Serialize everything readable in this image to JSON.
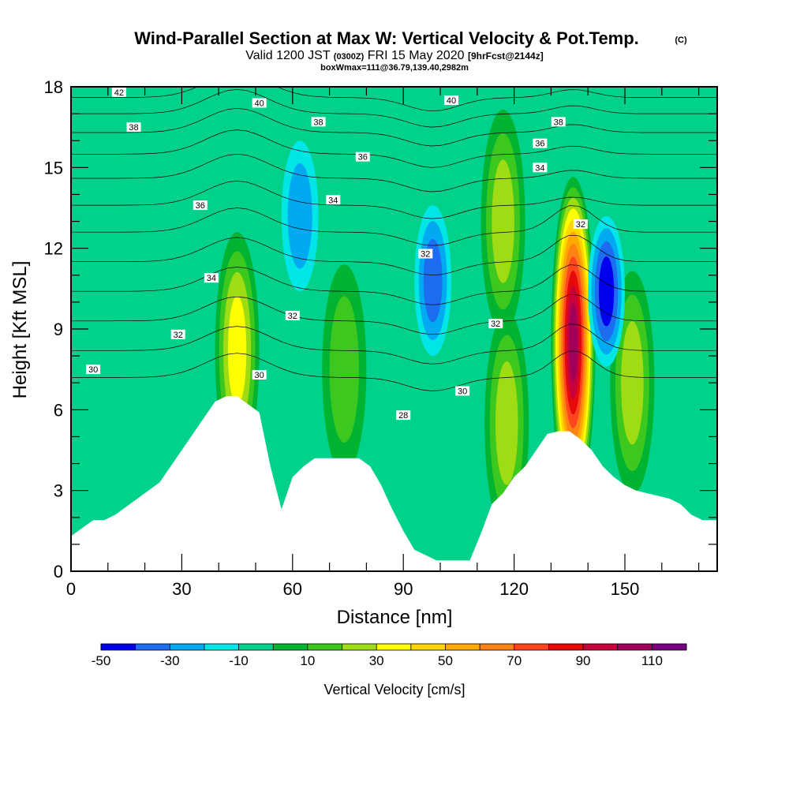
{
  "chart_data": {
    "type": "heatmap",
    "title": {
      "main": "Wind-Parallel Section at Max W: Vertical Velocity & Pot.Temp.",
      "copyright": "(C)",
      "line2_a": "Valid 1200 JST",
      "line2_b": "(0300Z)",
      "line2_c": "FRI 15 May 2020",
      "line2_d": "[9hrFcst@2144z]",
      "line3": "boxWmax=111@36.79,139.40,2982m"
    },
    "xlabel": "Distance [nm]",
    "ylabel": "Height [Kft MSL]",
    "xlim": [
      0,
      175
    ],
    "ylim": [
      0,
      18
    ],
    "xticks": [
      "0",
      "30",
      "60",
      "90",
      "120",
      "150"
    ],
    "yticks": [
      "0",
      "3",
      "6",
      "9",
      "12",
      "15",
      "18"
    ],
    "colorbar": {
      "label": "Vertical Velocity [cm/s]",
      "levels": [
        -50,
        -40,
        -30,
        -20,
        -10,
        0,
        10,
        20,
        30,
        40,
        50,
        60,
        70,
        80,
        90,
        100,
        110,
        120
      ],
      "colors": [
        "#0000ee",
        "#1e6cf0",
        "#00aaf0",
        "#00e6e6",
        "#00d28c",
        "#00b432",
        "#3cc81e",
        "#a0dc14",
        "#ffff00",
        "#ffd700",
        "#ffaa00",
        "#ff8214",
        "#ff461e",
        "#e60a0a",
        "#c8003c",
        "#a0005a",
        "#780082"
      ],
      "tick_labels": [
        "-50",
        "-30",
        "-10",
        "10",
        "30",
        "50",
        "70",
        "90",
        "110"
      ]
    },
    "terrain_profile": {
      "x": [
        0,
        3,
        6,
        9,
        12,
        15,
        18,
        21,
        24,
        27,
        30,
        33,
        36,
        39,
        42,
        45,
        48,
        51,
        54,
        57,
        60,
        63,
        66,
        69,
        72,
        75,
        78,
        81,
        84,
        87,
        90,
        93,
        96,
        99,
        102,
        105,
        108,
        111,
        114,
        117,
        120,
        123,
        126,
        129,
        132,
        135,
        138,
        141,
        144,
        147,
        150,
        153,
        156,
        159,
        162,
        165,
        168,
        171,
        175
      ],
      "y": [
        1.3,
        1.6,
        1.9,
        1.9,
        2.1,
        2.4,
        2.7,
        3.0,
        3.3,
        3.9,
        4.5,
        5.1,
        5.7,
        6.3,
        6.5,
        6.5,
        6.2,
        5.9,
        3.9,
        2.3,
        3.5,
        3.9,
        4.2,
        4.2,
        4.2,
        4.2,
        4.2,
        3.9,
        3.2,
        2.3,
        1.5,
        0.8,
        0.6,
        0.4,
        0.4,
        0.4,
        0.4,
        1.4,
        2.5,
        2.9,
        3.5,
        3.9,
        4.5,
        5.1,
        5.2,
        5.2,
        4.9,
        4.5,
        3.9,
        3.5,
        3.2,
        3.0,
        2.9,
        2.8,
        2.7,
        2.5,
        2.1,
        1.9,
        1.9
      ]
    },
    "updraft_cores": [
      {
        "x": 136,
        "y": 8.5,
        "w_peak": 111
      },
      {
        "x": 45,
        "y": 8.2,
        "w_peak": 40
      },
      {
        "x": 152,
        "y": 7.0,
        "w_peak": 35
      },
      {
        "x": 117,
        "y": 13.0,
        "w_peak": 30
      },
      {
        "x": 74,
        "y": 7.5,
        "w_peak": 28
      },
      {
        "x": 118,
        "y": 5.5,
        "w_peak": 30
      }
    ],
    "downdraft_cores": [
      {
        "x": 98,
        "y": 10.8,
        "w_min": -45
      },
      {
        "x": 145,
        "y": 10.4,
        "w_min": -50
      },
      {
        "x": 62,
        "y": 13.2,
        "w_min": -30
      },
      {
        "x": 102,
        "y": 2.5,
        "w_min": -15
      }
    ],
    "theta_contours": {
      "units": "C",
      "labels": [
        {
          "x": 13,
          "y": 17.8,
          "text": "42"
        },
        {
          "x": 51,
          "y": 17.4,
          "text": "40"
        },
        {
          "x": 103,
          "y": 17.5,
          "text": "40"
        },
        {
          "x": 17,
          "y": 16.5,
          "text": "38"
        },
        {
          "x": 67,
          "y": 16.7,
          "text": "38"
        },
        {
          "x": 132,
          "y": 16.7,
          "text": "38"
        },
        {
          "x": 79,
          "y": 15.4,
          "text": "36"
        },
        {
          "x": 127,
          "y": 15.9,
          "text": "36"
        },
        {
          "x": 35,
          "y": 13.6,
          "text": "36"
        },
        {
          "x": 71,
          "y": 13.8,
          "text": "34"
        },
        {
          "x": 127,
          "y": 15.0,
          "text": "34"
        },
        {
          "x": 38,
          "y": 10.9,
          "text": "34"
        },
        {
          "x": 96,
          "y": 11.8,
          "text": "32"
        },
        {
          "x": 138,
          "y": 12.9,
          "text": "32"
        },
        {
          "x": 60,
          "y": 9.5,
          "text": "32"
        },
        {
          "x": 115,
          "y": 9.2,
          "text": "32"
        },
        {
          "x": 29,
          "y": 8.8,
          "text": "32"
        },
        {
          "x": 6,
          "y": 7.5,
          "text": "30"
        },
        {
          "x": 51,
          "y": 7.3,
          "text": "30"
        },
        {
          "x": 106,
          "y": 6.7,
          "text": "30"
        },
        {
          "x": 90,
          "y": 5.8,
          "text": "28"
        }
      ]
    }
  }
}
